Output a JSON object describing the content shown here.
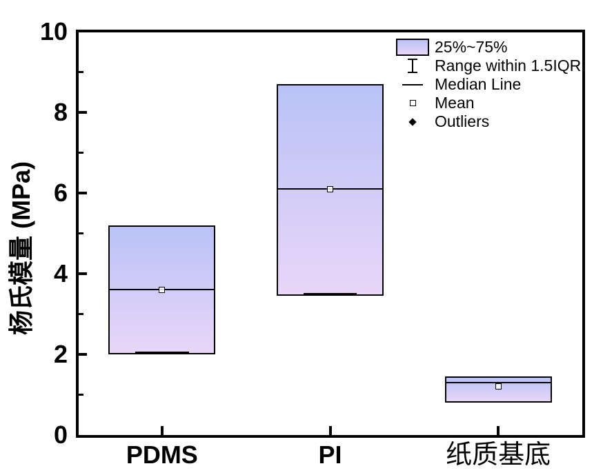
{
  "figure": {
    "background": "#ffffff"
  },
  "legend": {
    "items": [
      {
        "icon": "box-swatch-icon",
        "label": "25%~75%"
      },
      {
        "icon": "error-bar-icon",
        "label": "Range within 1.5IQR"
      },
      {
        "icon": "median-line-icon",
        "label": "Median Line"
      },
      {
        "icon": "mean-square-icon",
        "label": "Mean"
      },
      {
        "icon": "outlier-diamond-icon",
        "label": "Outliers"
      }
    ]
  },
  "chart_data": {
    "type": "box",
    "title": "",
    "xlabel": "",
    "ylabel": "杨氏模量 (MPa)",
    "categories": [
      "PDMS",
      "PI",
      "纸质基底"
    ],
    "ylim": [
      0,
      10
    ],
    "y_major_ticks": [
      0,
      2,
      4,
      6,
      8,
      10
    ],
    "y_minor_ticks": [
      1,
      3,
      5,
      7,
      9
    ],
    "grid": false,
    "legend_position": "top-right",
    "series": [
      {
        "category": "PDMS",
        "q1": 2.0,
        "median": 3.6,
        "q3": 5.2,
        "mean": 3.6,
        "whisker_low": 2.0,
        "whisker_high": 5.2,
        "outliers": [],
        "lower_cap_visible": true
      },
      {
        "category": "PI",
        "q1": 3.45,
        "median": 6.1,
        "q3": 8.7,
        "mean": 6.1,
        "whisker_low": 3.45,
        "whisker_high": 8.7,
        "outliers": [],
        "lower_cap_visible": true
      },
      {
        "category": "纸质基底",
        "q1": 0.8,
        "median": 1.3,
        "q3": 1.45,
        "mean": 1.2,
        "whisker_low": 0.8,
        "whisker_high": 1.45,
        "outliers": [],
        "lower_cap_visible": false
      }
    ],
    "colors": {
      "box_gradient_top": "#b9c2f7",
      "box_gradient_bottom": "#e9d6f8",
      "stroke": "#000000",
      "background": "#ffffff"
    }
  }
}
